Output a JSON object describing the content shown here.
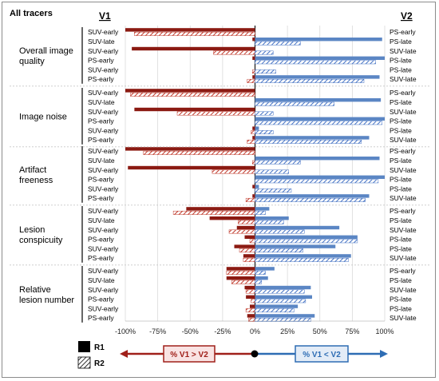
{
  "title": "All tracers",
  "left_header": "V1",
  "right_header": "V2",
  "legend": {
    "r1": "R1",
    "r2": "R2",
    "left_arrow": "% V1 > V2",
    "right_arrow": "% V1 < V2"
  },
  "colors": {
    "left_bar": "#8b1a12",
    "right_bar": "#5b86c4",
    "hatch_left": "#c0392b",
    "hatch_right": "#4472c4",
    "left_arrow": "#a0201a",
    "right_arrow": "#2e6db4"
  },
  "chart_data": {
    "type": "bar",
    "orientation": "horizontal",
    "xlim": [
      -100,
      100
    ],
    "x_ticks": [
      "-100%",
      "-75%",
      "-50%",
      "-25%",
      "0%",
      "25%",
      "50%",
      "75%",
      "100%"
    ],
    "tick_values": [
      -100,
      -75,
      -50,
      -25,
      0,
      25,
      50,
      75,
      100
    ],
    "series_names": [
      "R1",
      "R2"
    ],
    "groups": [
      {
        "label_lines": [
          "Overall image",
          "quality"
        ],
        "rows": [
          {
            "left": "SUV-early",
            "right": "PS-early",
            "r1": [
              -100,
              0
            ],
            "r2": [
              -93,
              -2
            ]
          },
          {
            "left": "SUV-late",
            "right": "PS-late",
            "r1": [
              -2,
              98
            ],
            "r2": [
              0,
              35
            ]
          },
          {
            "left": "SUV-early",
            "right": "SUV-late",
            "r1": [
              -95,
              0
            ],
            "r2": [
              -32,
              14
            ]
          },
          {
            "left": "PS-early",
            "right": "PS-late",
            "r1": [
              -2,
              100
            ],
            "r2": [
              0,
              93
            ]
          },
          {
            "left": "SUV-early",
            "right": "PS-late",
            "r1": [
              0,
              0
            ],
            "r2": [
              -2,
              16
            ]
          },
          {
            "left": "PS-early",
            "right": "SUV-late",
            "r1": [
              -2,
              96
            ],
            "r2": [
              -6,
              84
            ]
          }
        ]
      },
      {
        "label_lines": [
          "Image noise"
        ],
        "rows": [
          {
            "left": "SUV-early",
            "right": "PS-early",
            "r1": [
              -100,
              0
            ],
            "r2": [
              -96,
              0
            ]
          },
          {
            "left": "SUV-late",
            "right": "PS-late",
            "r1": [
              0,
              97
            ],
            "r2": [
              0,
              61
            ]
          },
          {
            "left": "SUV-early",
            "right": "SUV-late",
            "r1": [
              -93,
              0
            ],
            "r2": [
              -60,
              14
            ]
          },
          {
            "left": "PS-early",
            "right": "PS-late",
            "r1": [
              0,
              100
            ],
            "r2": [
              0,
              98
            ]
          },
          {
            "left": "SUV-early",
            "right": "PS-late",
            "r1": [
              -2,
              3
            ],
            "r2": [
              -3,
              14
            ]
          },
          {
            "left": "PS-early",
            "right": "SUV-late",
            "r1": [
              -2,
              88
            ],
            "r2": [
              -6,
              82
            ]
          }
        ]
      },
      {
        "label_lines": [
          "Artifact",
          "freeness"
        ],
        "rows": [
          {
            "left": "SUV-early",
            "right": "PS-early",
            "r1": [
              -100,
              0
            ],
            "r2": [
              -86,
              0
            ]
          },
          {
            "left": "SUV-late",
            "right": "PS-late",
            "r1": [
              0,
              96
            ],
            "r2": [
              -2,
              35
            ]
          },
          {
            "left": "SUV-early",
            "right": "SUV-late",
            "r1": [
              -98,
              0
            ],
            "r2": [
              -33,
              26
            ]
          },
          {
            "left": "PS-early",
            "right": "PS-late",
            "r1": [
              0,
              100
            ],
            "r2": [
              0,
              95
            ]
          },
          {
            "left": "SUV-early",
            "right": "PS-late",
            "r1": [
              -2,
              3
            ],
            "r2": [
              0,
              28
            ]
          },
          {
            "left": "PS-early",
            "right": "SUV-late",
            "r1": [
              -2,
              88
            ],
            "r2": [
              -7,
              85
            ]
          }
        ]
      },
      {
        "label_lines": [
          "Lesion",
          "conspicuity"
        ],
        "rows": [
          {
            "left": "SUV-early",
            "right": "PS-early",
            "r1": [
              -53,
              11
            ],
            "r2": [
              -63,
              8
            ]
          },
          {
            "left": "SUV-late",
            "right": "PS-late",
            "r1": [
              -35,
              26
            ],
            "r2": [
              -13,
              22
            ]
          },
          {
            "left": "SUV-early",
            "right": "SUV-late",
            "r1": [
              -14,
              65
            ],
            "r2": [
              -20,
              38
            ]
          },
          {
            "left": "PS-early",
            "right": "PS-late",
            "r1": [
              -8,
              79
            ],
            "r2": [
              -4,
              79
            ]
          },
          {
            "left": "SUV-early",
            "right": "PS-late",
            "r1": [
              -16,
              62
            ],
            "r2": [
              -12,
              37
            ]
          },
          {
            "left": "PS-early",
            "right": "SUV-late",
            "r1": [
              -9,
              74
            ],
            "r2": [
              -9,
              72
            ]
          }
        ]
      },
      {
        "label_lines": [
          "Relative",
          "lesion number"
        ],
        "rows": [
          {
            "left": "SUV-early",
            "right": "PS-early",
            "r1": [
              -22,
              15
            ],
            "r2": [
              -22,
              8
            ]
          },
          {
            "left": "SUV-late",
            "right": "PS-late",
            "r1": [
              -22,
              10
            ],
            "r2": [
              -18,
              5
            ]
          },
          {
            "left": "SUV-early",
            "right": "SUV-late",
            "r1": [
              -8,
              43
            ],
            "r2": [
              -7,
              38
            ]
          },
          {
            "left": "PS-early",
            "right": "PS-late",
            "r1": [
              -7,
              44
            ],
            "r2": [
              -3,
              39
            ]
          },
          {
            "left": "SUV-early",
            "right": "PS-late",
            "r1": [
              -4,
              33
            ],
            "r2": [
              -7,
              30
            ]
          },
          {
            "left": "PS-early",
            "right": "SUV-late",
            "r1": [
              -6,
              46
            ],
            "r2": [
              -5,
              43
            ]
          }
        ]
      }
    ]
  }
}
